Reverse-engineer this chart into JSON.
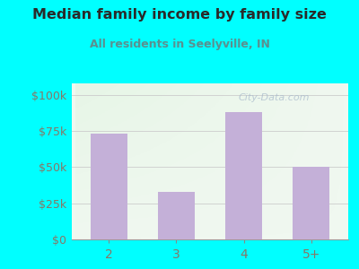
{
  "categories": [
    "2",
    "3",
    "4",
    "5+"
  ],
  "values": [
    73000,
    33000,
    88000,
    50000
  ],
  "bar_color": "#c4b0d8",
  "title": "Median family income by family size",
  "subtitle": "All residents in Seelyville, IN",
  "title_color": "#2a2a2a",
  "subtitle_color": "#5a9090",
  "yticks": [
    0,
    25000,
    50000,
    75000,
    100000
  ],
  "ytick_labels": [
    "$0",
    "$25k",
    "$50k",
    "$75k",
    "$100k"
  ],
  "ylim": [
    0,
    108000
  ],
  "background_color": "#00ffff",
  "tick_label_color": "#887766",
  "xtick_label_color": "#887766",
  "watermark": "City-Data.com",
  "watermark_color": "#aabbcc"
}
